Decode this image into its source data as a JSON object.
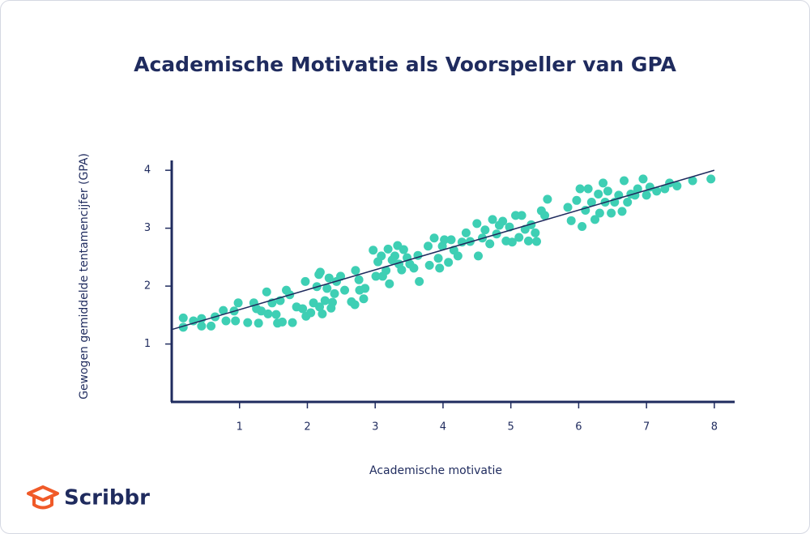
{
  "brand": "Scribbr",
  "chart_data": {
    "type": "scatter",
    "title": "Academische Motivatie als Voorspeller van GPA",
    "x_label": "Academische motivatie",
    "y_label": "Gewogen gemiddelde tentamencijfer (GPA)",
    "color": "#3ecfb4",
    "line_color": "#1f2b5e",
    "xlim": [
      0,
      8.3
    ],
    "ylim": [
      0,
      4.17
    ],
    "xticks": [
      1,
      2,
      3,
      4,
      5,
      6,
      7,
      8
    ],
    "yticks": [
      1,
      2,
      3,
      4
    ],
    "trendline": {
      "x": [
        0,
        8
      ],
      "values": [
        1.25,
        4.0
      ]
    },
    "x": [
      0.17,
      0.17,
      0.32,
      0.44,
      0.44,
      0.58,
      0.64,
      0.76,
      0.8,
      0.92,
      0.94,
      0.98,
      1.12,
      1.21,
      1.25,
      1.28,
      1.32,
      1.4,
      1.42,
      1.48,
      1.54,
      1.56,
      1.6,
      1.63,
      1.69,
      1.74,
      1.78,
      1.84,
      1.93,
      1.97,
      1.98,
      2.05,
      2.09,
      2.14,
      2.17,
      2.18,
      2.19,
      2.22,
      2.26,
      2.29,
      2.32,
      2.35,
      2.37,
      2.4,
      2.43,
      2.49,
      2.55,
      2.65,
      2.7,
      2.71,
      2.76,
      2.77,
      2.83,
      2.85,
      2.97,
      3.01,
      3.04,
      3.09,
      3.11,
      3.16,
      3.19,
      3.21,
      3.25,
      3.29,
      3.33,
      3.35,
      3.39,
      3.42,
      3.47,
      3.51,
      3.57,
      3.63,
      3.65,
      3.78,
      3.8,
      3.87,
      3.93,
      3.95,
      3.99,
      4.02,
      4.08,
      4.12,
      4.16,
      4.22,
      4.28,
      4.34,
      4.4,
      4.5,
      4.52,
      4.58,
      4.62,
      4.69,
      4.73,
      4.79,
      4.83,
      4.88,
      4.93,
      4.98,
      5.02,
      5.07,
      5.12,
      5.16,
      5.21,
      5.26,
      5.3,
      5.36,
      5.38,
      5.45,
      5.5,
      5.54,
      5.84,
      5.89,
      5.97,
      6.02,
      6.05,
      6.1,
      6.14,
      6.19,
      6.24,
      6.29,
      6.31,
      6.36,
      6.39,
      6.43,
      6.48,
      6.53,
      6.59,
      6.64,
      6.67,
      6.72,
      6.77,
      6.83,
      6.87,
      6.95,
      7.0,
      7.05,
      7.15,
      7.27,
      7.34,
      7.45,
      7.68,
      7.95
    ],
    "values": [
      1.45,
      1.29,
      1.4,
      1.44,
      1.31,
      1.31,
      1.47,
      1.58,
      1.4,
      1.57,
      1.4,
      1.71,
      1.37,
      1.71,
      1.61,
      1.36,
      1.57,
      1.9,
      1.52,
      1.71,
      1.51,
      1.36,
      1.75,
      1.38,
      1.93,
      1.85,
      1.37,
      1.64,
      1.61,
      2.08,
      1.48,
      1.54,
      1.71,
      1.99,
      2.2,
      1.64,
      2.24,
      1.52,
      1.75,
      1.96,
      2.14,
      1.62,
      1.72,
      1.87,
      2.08,
      2.17,
      1.93,
      1.73,
      1.68,
      2.27,
      2.11,
      1.93,
      1.78,
      1.96,
      2.62,
      2.17,
      2.42,
      2.52,
      2.17,
      2.27,
      2.64,
      2.04,
      2.45,
      2.52,
      2.7,
      2.38,
      2.28,
      2.63,
      2.49,
      2.38,
      2.31,
      2.53,
      2.08,
      2.69,
      2.36,
      2.83,
      2.48,
      2.31,
      2.69,
      2.8,
      2.41,
      2.8,
      2.62,
      2.52,
      2.76,
      2.92,
      2.77,
      3.08,
      2.52,
      2.83,
      2.97,
      2.73,
      3.15,
      2.9,
      3.05,
      3.12,
      2.78,
      3.02,
      2.76,
      3.22,
      2.84,
      3.22,
      2.98,
      2.78,
      3.06,
      2.92,
      2.77,
      3.3,
      3.22,
      3.5,
      3.36,
      3.13,
      3.48,
      3.68,
      3.03,
      3.31,
      3.68,
      3.45,
      3.15,
      3.59,
      3.26,
      3.78,
      3.45,
      3.64,
      3.26,
      3.45,
      3.57,
      3.29,
      3.82,
      3.45,
      3.59,
      3.57,
      3.68,
      3.85,
      3.57,
      3.71,
      3.64,
      3.68,
      3.78,
      3.73,
      3.82,
      3.85
    ]
  }
}
